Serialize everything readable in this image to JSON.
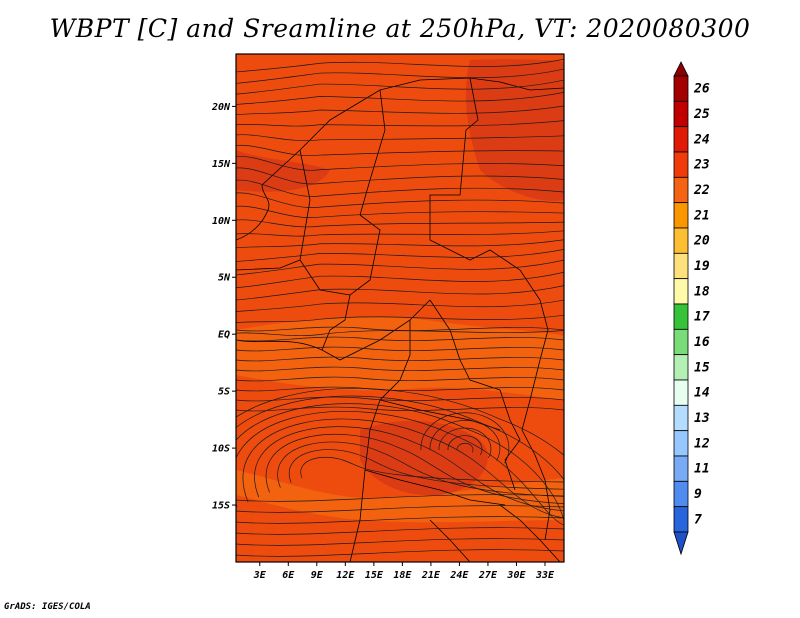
{
  "title": "WBPT [C] and Sreamline at 250hPa, VT: 2020080300",
  "footer": "GrADS: IGES/COLA",
  "map": {
    "fill_base_color": "#ee4c0f",
    "fill_light_color": "#f2620f",
    "fill_dark_color": "#dc3c14",
    "streamline_color": "#1a1a1a",
    "boundary_color": "#000000"
  },
  "lat_axis": {
    "labels": [
      {
        "text": "20N",
        "lat": 20
      },
      {
        "text": "15N",
        "lat": 15
      },
      {
        "text": "10N",
        "lat": 10
      },
      {
        "text": "5N",
        "lat": 5
      },
      {
        "text": "EQ",
        "lat": 0
      },
      {
        "text": "5S",
        "lat": -5
      },
      {
        "text": "10S",
        "lat": -10
      },
      {
        "text": "15S",
        "lat": -15
      }
    ],
    "lat_min": -20,
    "lat_max": 24.6
  },
  "lon_axis": {
    "labels": [
      {
        "text": "3E",
        "lon": 3
      },
      {
        "text": "6E",
        "lon": 6
      },
      {
        "text": "9E",
        "lon": 9
      },
      {
        "text": "12E",
        "lon": 12
      },
      {
        "text": "15E",
        "lon": 15
      },
      {
        "text": "18E",
        "lon": 18
      },
      {
        "text": "21E",
        "lon": 21
      },
      {
        "text": "24E",
        "lon": 24
      },
      {
        "text": "27E",
        "lon": 27
      },
      {
        "text": "30E",
        "lon": 30
      },
      {
        "text": "33E",
        "lon": 33
      }
    ],
    "lon_min": 0.5,
    "lon_max": 35.0
  },
  "colorbar": {
    "levels": [
      {
        "label": "26",
        "color": "#a50000"
      },
      {
        "label": "25",
        "color": "#c00000"
      },
      {
        "label": "24",
        "color": "#e11a05"
      },
      {
        "label": "23",
        "color": "#f03c0a"
      },
      {
        "label": "22",
        "color": "#f56414"
      },
      {
        "label": "21",
        "color": "#fa9600"
      },
      {
        "label": "20",
        "color": "#fcbe32"
      },
      {
        "label": "19",
        "color": "#fde17d"
      },
      {
        "label": "18",
        "color": "#fffaaa"
      },
      {
        "label": "17",
        "color": "#37c337"
      },
      {
        "label": "16",
        "color": "#78dc78"
      },
      {
        "label": "15",
        "color": "#b4f0b4"
      },
      {
        "label": "14",
        "color": "#e6fff0"
      },
      {
        "label": "13",
        "color": "#b4dcff"
      },
      {
        "label": "12",
        "color": "#96c8ff"
      },
      {
        "label": "11",
        "color": "#78aaf5"
      },
      {
        "label": "9",
        "color": "#508cf0"
      },
      {
        "label": "7",
        "color": "#2864dc"
      }
    ],
    "bottom_arrow_color": "#1e50c8",
    "top_arrow_color": "#8c0000"
  }
}
